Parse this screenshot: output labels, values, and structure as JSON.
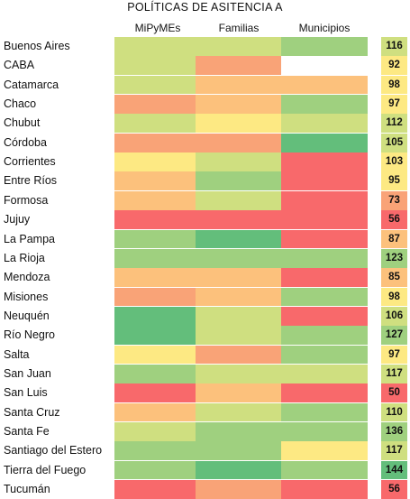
{
  "chart_data": {
    "type": "heatmap",
    "title": "POLÍTICAS DE ASITENCIA A",
    "columns": [
      "MiPyMEs",
      "Familias",
      "Municipios"
    ],
    "palette": {
      "dark_green": "#63be7b",
      "green": "#9fd07f",
      "light_green": "#cfdf80",
      "yellow": "#fde983",
      "orange": "#fcc17c",
      "salmon": "#f9a377",
      "red": "#f8696b",
      "none": "#ffffff"
    },
    "rows": [
      {
        "name": "Buenos Aires",
        "cells": [
          "light_green",
          "light_green",
          "green"
        ],
        "total": "116",
        "total_color": "light_green"
      },
      {
        "name": "CABA",
        "cells": [
          "light_green",
          "salmon",
          "none"
        ],
        "total": "92",
        "total_color": "yellow"
      },
      {
        "name": "Catamarca",
        "cells": [
          "light_green",
          "orange",
          "orange"
        ],
        "total": "98",
        "total_color": "yellow"
      },
      {
        "name": "Chaco",
        "cells": [
          "salmon",
          "orange",
          "green"
        ],
        "total": "97",
        "total_color": "yellow"
      },
      {
        "name": "Chubut",
        "cells": [
          "light_green",
          "yellow",
          "light_green"
        ],
        "total": "112",
        "total_color": "light_green"
      },
      {
        "name": "Córdoba",
        "cells": [
          "salmon",
          "salmon",
          "dark_green"
        ],
        "total": "105",
        "total_color": "light_green"
      },
      {
        "name": "Corrientes",
        "cells": [
          "yellow",
          "light_green",
          "red"
        ],
        "total": "103",
        "total_color": "yellow"
      },
      {
        "name": "Entre Ríos",
        "cells": [
          "orange",
          "green",
          "red"
        ],
        "total": "95",
        "total_color": "yellow"
      },
      {
        "name": "Formosa",
        "cells": [
          "orange",
          "light_green",
          "red"
        ],
        "total": "73",
        "total_color": "salmon"
      },
      {
        "name": "Jujuy",
        "cells": [
          "red",
          "red",
          "red"
        ],
        "total": "56",
        "total_color": "red"
      },
      {
        "name": "La Pampa",
        "cells": [
          "green",
          "dark_green",
          "red"
        ],
        "total": "87",
        "total_color": "orange"
      },
      {
        "name": "La Rioja",
        "cells": [
          "green",
          "green",
          "green"
        ],
        "total": "123",
        "total_color": "green"
      },
      {
        "name": "Mendoza",
        "cells": [
          "orange",
          "orange",
          "red"
        ],
        "total": "85",
        "total_color": "orange"
      },
      {
        "name": "Misiones",
        "cells": [
          "salmon",
          "orange",
          "green"
        ],
        "total": "98",
        "total_color": "yellow"
      },
      {
        "name": "Neuquén",
        "cells": [
          "dark_green",
          "light_green",
          "red"
        ],
        "total": "106",
        "total_color": "light_green"
      },
      {
        "name": "Río Negro",
        "cells": [
          "dark_green",
          "light_green",
          "green"
        ],
        "total": "127",
        "total_color": "green"
      },
      {
        "name": "Salta",
        "cells": [
          "yellow",
          "salmon",
          "green"
        ],
        "total": "97",
        "total_color": "yellow"
      },
      {
        "name": "San Juan",
        "cells": [
          "green",
          "light_green",
          "light_green"
        ],
        "total": "117",
        "total_color": "light_green"
      },
      {
        "name": "San Luis",
        "cells": [
          "red",
          "orange",
          "red"
        ],
        "total": "50",
        "total_color": "red"
      },
      {
        "name": "Santa Cruz",
        "cells": [
          "orange",
          "light_green",
          "green"
        ],
        "total": "110",
        "total_color": "light_green"
      },
      {
        "name": "Santa Fe",
        "cells": [
          "light_green",
          "green",
          "green"
        ],
        "total": "136",
        "total_color": "green"
      },
      {
        "name": "Santiago del Estero",
        "cells": [
          "green",
          "green",
          "yellow"
        ],
        "total": "117",
        "total_color": "light_green"
      },
      {
        "name": "Tierra del Fuego",
        "cells": [
          "green",
          "dark_green",
          "green"
        ],
        "total": "144",
        "total_color": "dark_green"
      },
      {
        "name": "Tucumán",
        "cells": [
          "red",
          "salmon",
          "red"
        ],
        "total": "56",
        "total_color": "red"
      }
    ]
  }
}
